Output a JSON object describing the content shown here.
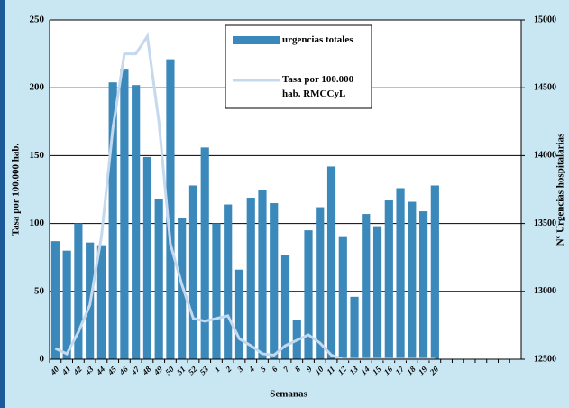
{
  "chart_data": {
    "type": "bar-line",
    "x_label": "Semanas",
    "y_label": "Tasa por 100.000 hab.",
    "y2_label": "Nº Urgencias hospitalarias",
    "categories": [
      "40",
      "41",
      "42",
      "43",
      "44",
      "45",
      "46",
      "47",
      "48",
      "49",
      "50",
      "51",
      "52",
      "53",
      "1",
      "2",
      "3",
      "4",
      "5",
      "6",
      "7",
      "8",
      "9",
      "10",
      "11",
      "12",
      "13",
      "14",
      "15",
      "16",
      "17",
      "18",
      "19",
      "20",
      null,
      null,
      null,
      null,
      null,
      null,
      null
    ],
    "series": [
      {
        "name": "urgencias totales",
        "type": "bar",
        "axis": "y2",
        "color": "#3b88ba",
        "values": [
          13370,
          13300,
          13500,
          13360,
          13340,
          14540,
          14640,
          14520,
          13990,
          13680,
          14710,
          13540,
          13780,
          14060,
          13500,
          13640,
          13160,
          13690,
          13750,
          13650,
          13270,
          12790,
          13450,
          13620,
          13920,
          13400,
          12960,
          13570,
          13480,
          13670,
          13760,
          13660,
          13590,
          13780,
          null,
          null,
          null,
          null,
          null,
          null,
          null
        ]
      },
      {
        "name": "Tasa por 100.000 hab. RMCCyL",
        "type": "line",
        "color": "#c4d9ee",
        "values": [
          8,
          4,
          20,
          40,
          90,
          170,
          225,
          225,
          238,
          175,
          85,
          55,
          30,
          28,
          30,
          32,
          15,
          10,
          4,
          3,
          10,
          14,
          18,
          12,
          3,
          0,
          0,
          0,
          0,
          0,
          0,
          0,
          0,
          0,
          null,
          null,
          null,
          null,
          null,
          null,
          null
        ]
      }
    ],
    "ylim": [
      0,
      250
    ],
    "yticks": [
      0,
      50,
      100,
      150,
      200,
      250
    ],
    "y2lim": [
      12500,
      15000
    ],
    "y2ticks": [
      12500,
      13000,
      13500,
      14000,
      14500,
      15000
    ],
    "grid": true
  }
}
